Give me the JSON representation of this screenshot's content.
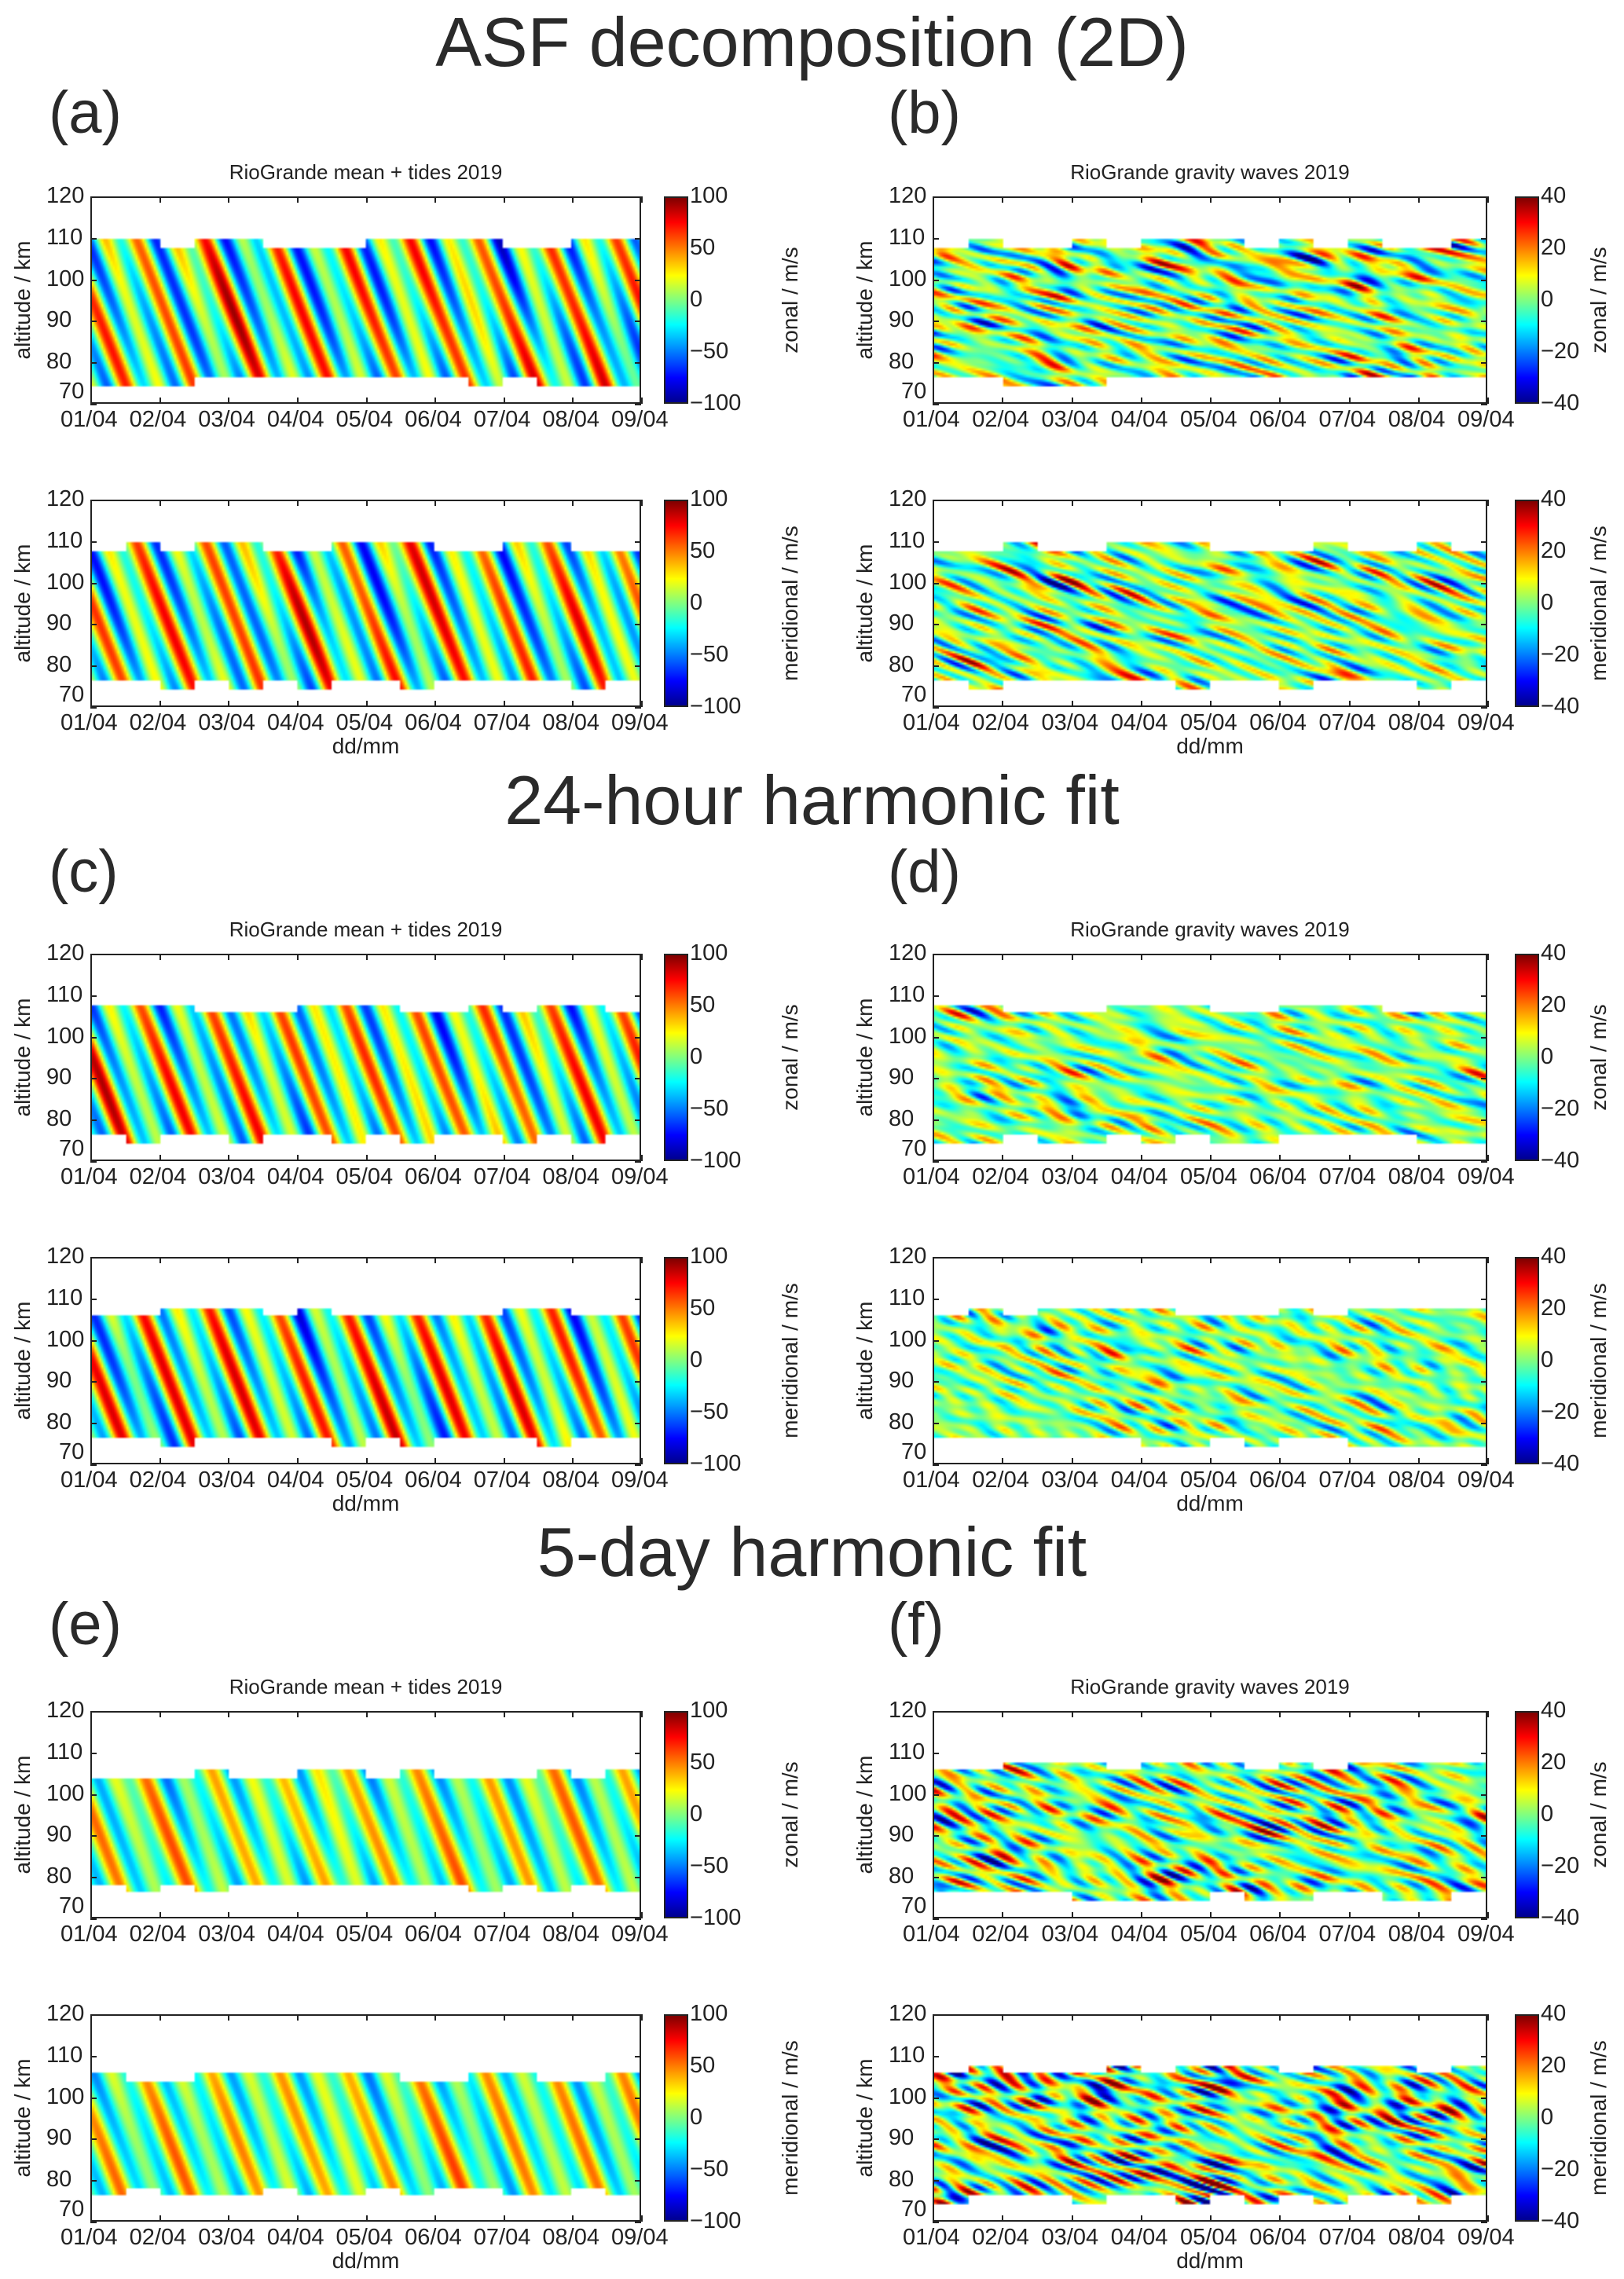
{
  "sections": [
    {
      "title": "ASF decomposition (2D)",
      "labels": [
        "(a)",
        "(b)"
      ]
    },
    {
      "title": "24-hour harmonic fit",
      "labels": [
        "(c)",
        "(d)"
      ]
    },
    {
      "title": "5-day harmonic fit",
      "labels": [
        "(e)",
        "(f)"
      ]
    }
  ],
  "xlabel": "dd/mm",
  "chart_data": {
    "type": "heatmap",
    "colormap": "jet",
    "xticks": [
      "01/04",
      "02/04",
      "03/04",
      "04/04",
      "05/04",
      "06/04",
      "07/04",
      "08/04",
      "09/04"
    ],
    "yticks": [
      "70",
      "80",
      "90",
      "100",
      "110",
      "120"
    ],
    "ylabel": "altitude / km",
    "ylim": [
      70,
      120
    ],
    "panels": [
      {
        "section": 0,
        "col": 0,
        "row": 0,
        "title": "RioGrande mean + tides 2019",
        "cbar_label": "zonal / m/s",
        "clim": [
          -100,
          100
        ],
        "cticks": [
          "100",
          "50",
          "0",
          "−50",
          "−100"
        ],
        "kind": "tides",
        "alt_range": [
          74,
          110
        ]
      },
      {
        "section": 0,
        "col": 0,
        "row": 1,
        "title": "",
        "cbar_label": "meridional / m/s",
        "clim": [
          -100,
          100
        ],
        "cticks": [
          "100",
          "50",
          "0",
          "−50",
          "−100"
        ],
        "kind": "tides",
        "alt_range": [
          74,
          110
        ]
      },
      {
        "section": 0,
        "col": 1,
        "row": 0,
        "title": "RioGrande gravity waves 2019",
        "cbar_label": "zonal / m/s",
        "clim": [
          -40,
          40
        ],
        "cticks": [
          "40",
          "20",
          "0",
          "−20",
          "−40"
        ],
        "kind": "gw",
        "alt_range": [
          74,
          110
        ]
      },
      {
        "section": 0,
        "col": 1,
        "row": 1,
        "title": "",
        "cbar_label": "meridional / m/s",
        "clim": [
          -40,
          40
        ],
        "cticks": [
          "40",
          "20",
          "0",
          "−20",
          "−40"
        ],
        "kind": "gw",
        "alt_range": [
          74,
          110
        ]
      },
      {
        "section": 1,
        "col": 0,
        "row": 0,
        "title": "RioGrande mean + tides 2019",
        "cbar_label": "zonal / m/s",
        "clim": [
          -100,
          100
        ],
        "cticks": [
          "100",
          "50",
          "0",
          "−50",
          "−100"
        ],
        "kind": "tides",
        "alt_range": [
          74,
          108
        ]
      },
      {
        "section": 1,
        "col": 0,
        "row": 1,
        "title": "",
        "cbar_label": "meridional / m/s",
        "clim": [
          -100,
          100
        ],
        "cticks": [
          "100",
          "50",
          "0",
          "−50",
          "−100"
        ],
        "kind": "tides",
        "alt_range": [
          74,
          108
        ]
      },
      {
        "section": 1,
        "col": 1,
        "row": 0,
        "title": "RioGrande gravity waves 2019",
        "cbar_label": "zonal / m/s",
        "clim": [
          -40,
          40
        ],
        "cticks": [
          "40",
          "20",
          "0",
          "−20",
          "−40"
        ],
        "kind": "gw_weak",
        "alt_range": [
          74,
          108
        ]
      },
      {
        "section": 1,
        "col": 1,
        "row": 1,
        "title": "",
        "cbar_label": "meridional / m/s",
        "clim": [
          -40,
          40
        ],
        "cticks": [
          "40",
          "20",
          "0",
          "−20",
          "−40"
        ],
        "kind": "gw_weak",
        "alt_range": [
          74,
          108
        ]
      },
      {
        "section": 2,
        "col": 0,
        "row": 0,
        "title": "RioGrande mean + tides 2019",
        "cbar_label": "zonal / m/s",
        "clim": [
          -100,
          100
        ],
        "cticks": [
          "100",
          "50",
          "0",
          "−50",
          "−100"
        ],
        "kind": "tides_smooth",
        "alt_range": [
          76,
          106
        ]
      },
      {
        "section": 2,
        "col": 0,
        "row": 1,
        "title": "",
        "cbar_label": "meridional / m/s",
        "clim": [
          -100,
          100
        ],
        "cticks": [
          "100",
          "50",
          "0",
          "−50",
          "−100"
        ],
        "kind": "tides_smooth",
        "alt_range": [
          76,
          106
        ]
      },
      {
        "section": 2,
        "col": 1,
        "row": 0,
        "title": "RioGrande gravity waves 2019",
        "cbar_label": "zonal / m/s",
        "clim": [
          -40,
          40
        ],
        "cticks": [
          "40",
          "20",
          "0",
          "−20",
          "−40"
        ],
        "kind": "gw_strong",
        "alt_range": [
          74,
          108
        ]
      },
      {
        "section": 2,
        "col": 1,
        "row": 1,
        "title": "",
        "cbar_label": "meridional / m/s",
        "clim": [
          -40,
          40
        ],
        "cticks": [
          "40",
          "20",
          "0",
          "−20",
          "−40"
        ],
        "kind": "gw_strong",
        "alt_range": [
          74,
          108
        ]
      }
    ]
  }
}
